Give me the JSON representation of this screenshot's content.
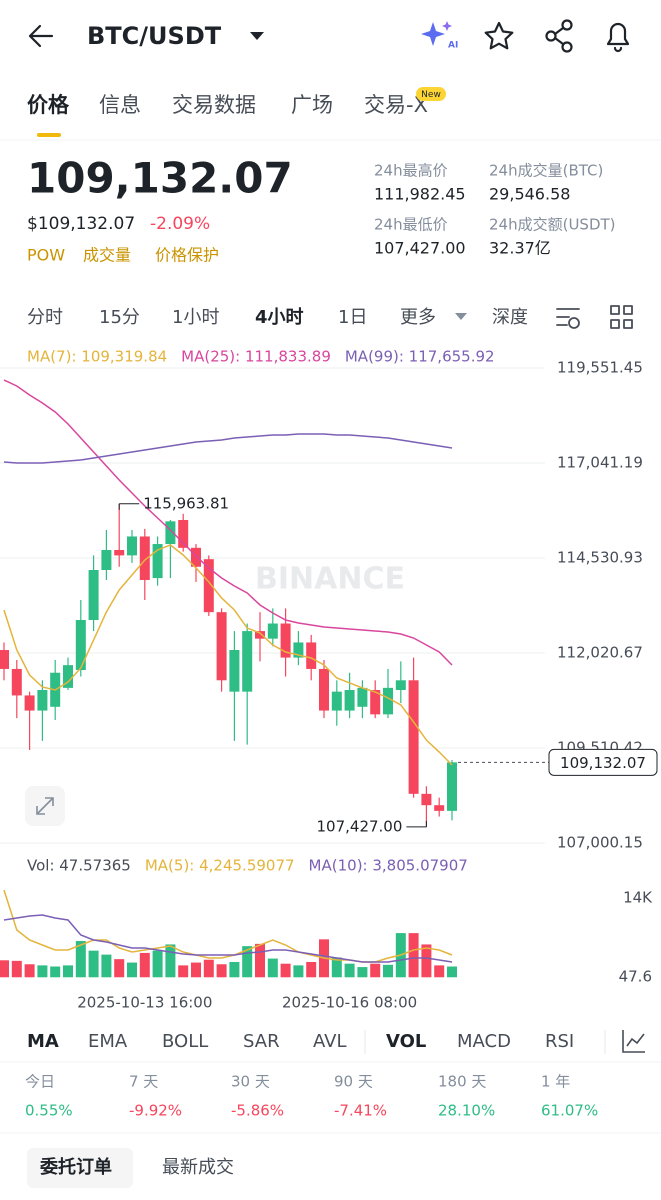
{
  "header": {
    "title": "BTC/USDT",
    "ai": "AI"
  },
  "tabs": [
    "价格",
    "信息",
    "交易数据",
    "广场",
    "交易-X"
  ],
  "new_badge": "New",
  "price": {
    "last": "109,132.07",
    "fiat": "$109,132.07",
    "change": "-2.09%",
    "tags": [
      "POW",
      "成交量",
      "价格保护"
    ]
  },
  "stats": [
    {
      "label": "24h最高价",
      "value": "111,982.45"
    },
    {
      "label": "24h成交量(BTC)",
      "value": "29,546.58"
    },
    {
      "label": "24h最低价",
      "value": "107,427.00"
    },
    {
      "label": "24h成交额(USDT)",
      "value": "32.37亿"
    }
  ],
  "intervals": [
    "分时",
    "15分",
    "1小时",
    "4小时",
    "1日",
    "更多",
    "深度"
  ],
  "chart_data": {
    "type": "candlestick",
    "watermark": "BINANCE",
    "categories": [
      null,
      null,
      null,
      null,
      null,
      null,
      null,
      null,
      null,
      null,
      null,
      "2025-10-13 16:00",
      null,
      null,
      null,
      null,
      null,
      null,
      null,
      null,
      null,
      null,
      null,
      null,
      null,
      null,
      null,
      "2025-10-16 08:00",
      null,
      null,
      null,
      null,
      null,
      null,
      null,
      null
    ],
    "open": [
      112100,
      111600,
      110900,
      110500,
      110600,
      111100,
      111572,
      112893,
      114214,
      114743,
      114600,
      115100,
      114000,
      114900,
      115535,
      114800,
      114500,
      113100,
      111000,
      111000,
      112600,
      112400,
      112800,
      111900,
      112300,
      111600,
      110500,
      110500,
      110600,
      111044,
      110400,
      111044,
      111300,
      108300,
      108000,
      107850
    ],
    "high": [
      112300,
      111836,
      111000,
      111300,
      111836,
      111900,
      113421,
      114600,
      115271,
      115963.81,
      115271,
      115300,
      115100,
      115535,
      115700,
      114900,
      114600,
      113200,
      112600,
      112800,
      113100,
      113200,
      113200,
      112600,
      112500,
      111836,
      111300,
      111500,
      111300,
      111300,
      111600,
      111800,
      111900,
      108500,
      108200,
      109194
    ],
    "low": [
      111300,
      110300,
      109458,
      109700,
      110251,
      111044,
      111400,
      112600,
      113950,
      114300,
      114400,
      113421,
      113800,
      114000,
      114700,
      113900,
      113000,
      111000,
      109700,
      109600,
      111800,
      112200,
      111400,
      111700,
      111300,
      110300,
      110100,
      110300,
      110300,
      110300,
      110300,
      110700,
      108200,
      107427.0,
      107700,
      107600
    ],
    "close": [
      111600,
      110900,
      110500,
      111044,
      111500,
      111700,
      112893,
      114214,
      114743,
      114600,
      115100,
      113950,
      114900,
      115500,
      114800,
      114300,
      113100,
      111300,
      112100,
      112600,
      112400,
      112800,
      111900,
      112300,
      111600,
      110500,
      111000,
      111044,
      111100,
      110400,
      111100,
      111300,
      108300,
      108000,
      107850,
      109132.07
    ],
    "up_color": "#2ebd85",
    "down_color": "#f6465d",
    "ylim": [
      106684,
      120159
    ],
    "yticks": [
      {
        "value": 119551.45,
        "label": "119,551.45"
      },
      {
        "value": 117041.19,
        "label": "117,041.19"
      },
      {
        "value": 114530.93,
        "label": "114,530.93"
      },
      {
        "value": 112020.67,
        "label": "112,020.67"
      },
      {
        "value": 109510.42,
        "label": "109,510.42"
      },
      {
        "value": 107000.15,
        "label": "107,000.15"
      }
    ],
    "grid": true,
    "series": [
      {
        "name": "MA(7): 109,319.84",
        "color": "#e4b43c",
        "values": [
          113157,
          112100,
          111440,
          111123,
          111044,
          111255,
          111625,
          112365,
          113105,
          113686,
          114082,
          114478,
          114743,
          114875,
          114611,
          114267,
          113897,
          113475,
          113157,
          112681,
          112549,
          112232,
          112047,
          111968,
          111889,
          111704,
          111361,
          111229,
          111097,
          110991,
          110833,
          110648,
          110198,
          109722,
          109405,
          109062
        ]
      },
      {
        "name": "MA(25): 111,833.89",
        "color": "#d9469e",
        "values": [
          119234,
          119076,
          118838,
          118627,
          118389,
          118072,
          117702,
          117332,
          116962,
          116592,
          116249,
          115905,
          115588,
          115271,
          114928,
          114584,
          114267,
          114003,
          113792,
          113607,
          113290,
          113078,
          112893,
          112814,
          112761,
          112708,
          112682,
          112655,
          112629,
          112602,
          112576,
          112523,
          112417,
          112232,
          112047,
          111704
        ]
      },
      {
        "name": "MA(99): 117,655.92",
        "color": "#7b5fb5",
        "values": [
          117068,
          117041,
          117041,
          117041,
          117068,
          117094,
          117120,
          117173,
          117226,
          117279,
          117332,
          117385,
          117437,
          117490,
          117543,
          117596,
          117622,
          117649,
          117702,
          117728,
          117755,
          117781,
          117781,
          117807,
          117807,
          117807,
          117781,
          117781,
          117755,
          117728,
          117702,
          117649,
          117596,
          117543,
          117490,
          117437
        ]
      }
    ],
    "annotations": [
      {
        "value": 115963.81,
        "label": "115,963.81"
      },
      {
        "value": 107427.0,
        "label": "107,427.00"
      }
    ],
    "last_price": {
      "value": 109132.07,
      "label": "109,132.07"
    },
    "volume": {
      "label": "Vol: 47.57365",
      "values": [
        3000,
        2900,
        2300,
        2100,
        1900,
        2100,
        6400,
        4700,
        4000,
        3200,
        2600,
        4300,
        4700,
        5800,
        2100,
        2600,
        3100,
        2300,
        2700,
        5500,
        5900,
        3300,
        2400,
        2100,
        2700,
        6700,
        3500,
        2400,
        1800,
        2400,
        2200,
        7800,
        7800,
        5800,
        2100,
        1900
      ],
      "ylim": [
        -1894,
        17179
      ],
      "yticks": [
        {
          "value": 14000,
          "label": "14K"
        },
        47.6
      ],
      "series": [
        {
          "name": "MA(5): 4,245.59077",
          "color": "#e4b43c",
          "values": [
            15413,
            8349,
            6583,
            5700,
            4817,
            4817,
            5700,
            6583,
            6583,
            5170,
            4464,
            4817,
            5170,
            5523,
            4464,
            3934,
            3404,
            3404,
            3934,
            4817,
            5700,
            6583,
            5700,
            4464,
            3934,
            3404,
            3051,
            3051,
            2698,
            2698,
            3404,
            3934,
            4817,
            5170,
            4817,
            3934
          ]
        },
        {
          "name": "MA(10): 3,805.07907",
          "color": "#7b5fb5",
          "values": [
            10115,
            10468,
            10821,
            10998,
            10468,
            10115,
            7466,
            6583,
            6230,
            5700,
            5170,
            5170,
            4817,
            4464,
            4110,
            3934,
            3934,
            3934,
            3934,
            4287,
            4464,
            4817,
            4817,
            4464,
            4110,
            3757,
            3404,
            3051,
            2698,
            2698,
            2698,
            3051,
            3404,
            3404,
            3051,
            2698
          ]
        }
      ]
    }
  },
  "indicators": [
    "MA",
    "EMA",
    "BOLL",
    "SAR",
    "AVL",
    "VOL",
    "MACD",
    "RSI"
  ],
  "performance": [
    {
      "period": "今日",
      "change": "0.55%"
    },
    {
      "period": "7 天",
      "change": "-9.92%"
    },
    {
      "period": "30 天",
      "change": "-5.86%"
    },
    {
      "period": "90 天",
      "change": "-7.41%"
    },
    {
      "period": "180 天",
      "change": "28.10%"
    },
    {
      "period": "1 年",
      "change": "61.07%"
    }
  ],
  "order_tabs": [
    "委托订单",
    "最新成交"
  ]
}
